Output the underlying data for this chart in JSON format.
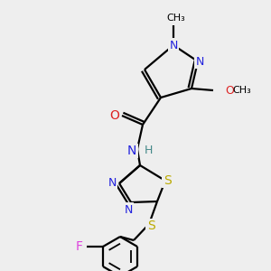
{
  "bg_color": "#eeeeee",
  "colors": {
    "C": "#000000",
    "N": "#2222dd",
    "O": "#dd2222",
    "S": "#bbaa00",
    "F": "#dd44dd",
    "H": "#448888",
    "bond": "#000000"
  },
  "figsize": [
    3.0,
    3.0
  ],
  "dpi": 100
}
